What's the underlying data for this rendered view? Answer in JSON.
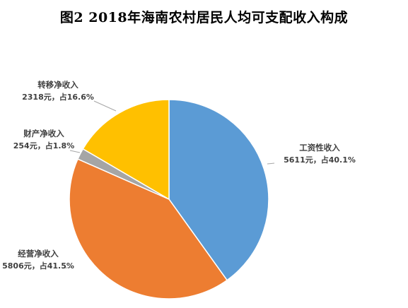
{
  "chart_data": {
    "type": "pie",
    "title": "图2  2018年海南农村居民人均可支配收入构成",
    "slices": [
      {
        "name": "工资性收入",
        "value": 5611,
        "percent": 40.1,
        "value_text": "5611元，占40.1%",
        "color": "#5B9BD5"
      },
      {
        "name": "经营净收入",
        "value": 5806,
        "percent": 41.5,
        "value_text": "5806元，占41.5%",
        "color": "#ED7D31"
      },
      {
        "name": "财产净收入",
        "value": 254,
        "percent": 1.8,
        "value_text": "254元，占1.8%",
        "color": "#A5A5A5"
      },
      {
        "name": "转移净收入",
        "value": 2318,
        "percent": 16.6,
        "value_text": "2318元，占16.6%",
        "color": "#FFC000"
      }
    ],
    "start_angle_deg": 0,
    "direction": "clockwise",
    "legend": "none",
    "label_style": "outside-with-leader-lines"
  }
}
